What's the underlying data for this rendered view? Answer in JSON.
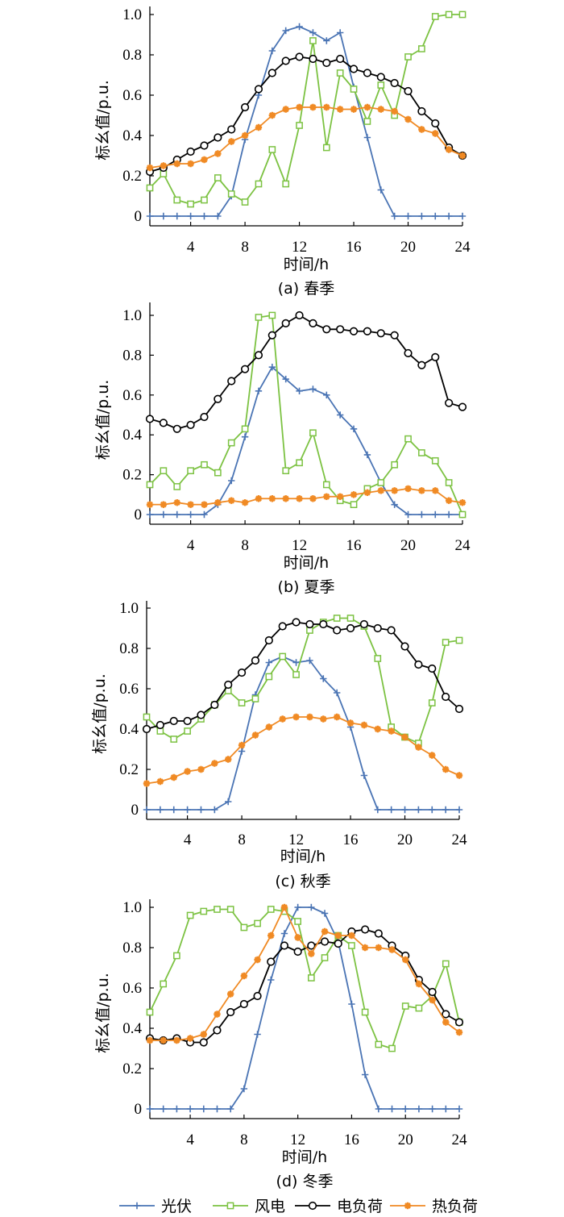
{
  "chart_data": [
    {
      "type": "line",
      "caption": "(a)  春季",
      "xlabel": "时间/h",
      "ylabel": "标幺值/p.u.",
      "xlim": [
        1,
        24
      ],
      "ylim": [
        0,
        1.0
      ],
      "xticks": [
        4,
        8,
        12,
        16,
        20,
        24
      ],
      "yticks": [
        0,
        0.2,
        0.4,
        0.6,
        0.8,
        1.0
      ],
      "ytick_labels": [
        "0",
        "0.2",
        "0.4",
        "0.6",
        "0.8",
        "1.0"
      ],
      "x": [
        1,
        2,
        3,
        4,
        5,
        6,
        7,
        8,
        9,
        10,
        11,
        12,
        13,
        14,
        15,
        16,
        17,
        18,
        19,
        20,
        21,
        22,
        23,
        24
      ],
      "series": [
        {
          "name": "光伏",
          "values": [
            0,
            0,
            0,
            0,
            0,
            0,
            0.1,
            0.38,
            0.6,
            0.82,
            0.92,
            0.94,
            0.91,
            0.87,
            0.91,
            0.64,
            0.39,
            0.13,
            0,
            0,
            0,
            0,
            0,
            0
          ]
        },
        {
          "name": "风电",
          "values": [
            0.14,
            0.21,
            0.08,
            0.06,
            0.08,
            0.19,
            0.11,
            0.07,
            0.16,
            0.33,
            0.16,
            0.45,
            0.87,
            0.34,
            0.71,
            0.63,
            0.47,
            0.65,
            0.5,
            0.79,
            0.83,
            0.99,
            1.0,
            1.0
          ]
        },
        {
          "name": "电负荷",
          "values": [
            0.22,
            0.24,
            0.28,
            0.32,
            0.35,
            0.39,
            0.43,
            0.54,
            0.63,
            0.71,
            0.77,
            0.79,
            0.78,
            0.76,
            0.78,
            0.73,
            0.71,
            0.69,
            0.66,
            0.62,
            0.52,
            0.46,
            0.34,
            0.3
          ]
        },
        {
          "name": "热负荷",
          "values": [
            0.24,
            0.25,
            0.26,
            0.26,
            0.28,
            0.31,
            0.37,
            0.4,
            0.44,
            0.5,
            0.53,
            0.54,
            0.54,
            0.54,
            0.53,
            0.53,
            0.54,
            0.53,
            0.52,
            0.48,
            0.43,
            0.41,
            0.33,
            0.3
          ]
        }
      ]
    },
    {
      "type": "line",
      "caption": "(b)  夏季",
      "xlabel": "时间/h",
      "ylabel": "标幺值/p.u.",
      "xlim": [
        1,
        24
      ],
      "ylim": [
        0,
        1.05
      ],
      "xticks": [
        4,
        8,
        12,
        16,
        20,
        24
      ],
      "yticks": [
        0,
        0.2,
        0.4,
        0.6,
        0.8,
        1.0
      ],
      "ytick_labels": [
        "0",
        "0.2",
        "0.4",
        "0.6",
        "0.8",
        "1.0"
      ],
      "x": [
        1,
        2,
        3,
        4,
        5,
        6,
        7,
        8,
        9,
        10,
        11,
        12,
        13,
        14,
        15,
        16,
        17,
        18,
        19,
        20,
        21,
        22,
        23,
        24
      ],
      "series": [
        {
          "name": "光伏",
          "values": [
            0,
            0,
            0,
            0,
            0,
            0.05,
            0.17,
            0.39,
            0.62,
            0.74,
            0.68,
            0.62,
            0.63,
            0.6,
            0.5,
            0.43,
            0.3,
            0.16,
            0.05,
            0,
            0,
            0,
            0,
            0
          ]
        },
        {
          "name": "风电",
          "values": [
            0.15,
            0.22,
            0.14,
            0.22,
            0.25,
            0.21,
            0.36,
            0.43,
            0.99,
            1.0,
            0.22,
            0.26,
            0.41,
            0.15,
            0.07,
            0.05,
            0.13,
            0.16,
            0.25,
            0.38,
            0.31,
            0.27,
            0.16,
            0.0
          ]
        },
        {
          "name": "电负荷",
          "values": [
            0.48,
            0.46,
            0.43,
            0.45,
            0.49,
            0.58,
            0.67,
            0.73,
            0.8,
            0.9,
            0.96,
            1.0,
            0.96,
            0.93,
            0.93,
            0.92,
            0.92,
            0.91,
            0.9,
            0.81,
            0.75,
            0.79,
            0.56,
            0.54
          ]
        },
        {
          "name": "热负荷",
          "values": [
            0.05,
            0.05,
            0.06,
            0.05,
            0.05,
            0.06,
            0.07,
            0.06,
            0.08,
            0.08,
            0.08,
            0.08,
            0.08,
            0.09,
            0.09,
            0.1,
            0.11,
            0.12,
            0.12,
            0.13,
            0.12,
            0.12,
            0.07,
            0.06
          ]
        }
      ]
    },
    {
      "type": "line",
      "caption": "(c)  秋季",
      "xlabel": "时间/h",
      "ylabel": "标幺值/p.u.",
      "xlim": [
        1,
        24
      ],
      "ylim": [
        0,
        1.0
      ],
      "xticks": [
        4,
        8,
        12,
        16,
        20,
        24
      ],
      "yticks": [
        0,
        0.2,
        0.4,
        0.6,
        0.8,
        1.0
      ],
      "ytick_labels": [
        "0",
        "0.2",
        "0.4",
        "0.6",
        "0.8",
        "1.0"
      ],
      "x": [
        1,
        2,
        3,
        4,
        5,
        6,
        7,
        8,
        9,
        10,
        11,
        12,
        13,
        14,
        15,
        16,
        17,
        18,
        19,
        20,
        21,
        22,
        23,
        24
      ],
      "series": [
        {
          "name": "光伏",
          "values": [
            0,
            0,
            0,
            0,
            0,
            0,
            0.04,
            0.29,
            0.57,
            0.73,
            0.76,
            0.73,
            0.74,
            0.65,
            0.58,
            0.41,
            0.17,
            0,
            0,
            0,
            0,
            0,
            0,
            0
          ]
        },
        {
          "name": "风电",
          "values": [
            0.46,
            0.39,
            0.35,
            0.39,
            0.45,
            0.52,
            0.59,
            0.53,
            0.55,
            0.66,
            0.76,
            0.67,
            0.89,
            0.93,
            0.95,
            0.95,
            0.91,
            0.75,
            0.41,
            0.36,
            0.33,
            0.53,
            0.83,
            0.84
          ]
        },
        {
          "name": "电负荷",
          "values": [
            0.4,
            0.42,
            0.44,
            0.44,
            0.47,
            0.52,
            0.62,
            0.68,
            0.74,
            0.84,
            0.91,
            0.93,
            0.92,
            0.92,
            0.89,
            0.9,
            0.92,
            0.9,
            0.89,
            0.81,
            0.72,
            0.7,
            0.56,
            0.5
          ]
        },
        {
          "name": "热负荷",
          "values": [
            0.13,
            0.14,
            0.16,
            0.19,
            0.2,
            0.23,
            0.25,
            0.32,
            0.37,
            0.41,
            0.45,
            0.46,
            0.46,
            0.45,
            0.46,
            0.43,
            0.42,
            0.4,
            0.39,
            0.36,
            0.31,
            0.27,
            0.2,
            0.17
          ]
        }
      ]
    },
    {
      "type": "line",
      "caption": "(d)  冬季",
      "xlabel": "时间/h",
      "ylabel": "标幺值/p.u.",
      "xlim": [
        1,
        24
      ],
      "ylim": [
        0,
        1.0
      ],
      "xticks": [
        4,
        8,
        12,
        16,
        20,
        24
      ],
      "yticks": [
        0,
        0.2,
        0.4,
        0.6,
        0.8,
        1.0
      ],
      "ytick_labels": [
        "0",
        "0.2",
        "0.4",
        "0.6",
        "0.8",
        "1.0"
      ],
      "x": [
        1,
        2,
        3,
        4,
        5,
        6,
        7,
        8,
        9,
        10,
        11,
        12,
        13,
        14,
        15,
        16,
        17,
        18,
        19,
        20,
        21,
        22,
        23,
        24
      ],
      "series": [
        {
          "name": "光伏",
          "values": [
            0,
            0,
            0,
            0,
            0,
            0,
            0,
            0.1,
            0.37,
            0.64,
            0.87,
            1.0,
            1.0,
            0.97,
            0.83,
            0.52,
            0.17,
            0,
            0,
            0,
            0,
            0,
            0,
            0
          ]
        },
        {
          "name": "风电",
          "values": [
            0.48,
            0.62,
            0.76,
            0.96,
            0.98,
            0.99,
            0.99,
            0.9,
            0.92,
            0.99,
            0.98,
            0.93,
            0.65,
            0.75,
            0.86,
            0.81,
            0.48,
            0.32,
            0.3,
            0.51,
            0.5,
            0.56,
            0.72,
            0.43
          ]
        },
        {
          "name": "电负荷",
          "values": [
            0.35,
            0.34,
            0.35,
            0.33,
            0.33,
            0.39,
            0.48,
            0.52,
            0.56,
            0.73,
            0.81,
            0.78,
            0.81,
            0.83,
            0.82,
            0.88,
            0.89,
            0.87,
            0.81,
            0.76,
            0.64,
            0.58,
            0.47,
            0.43
          ]
        },
        {
          "name": "热负荷",
          "values": [
            0.34,
            0.34,
            0.34,
            0.35,
            0.37,
            0.47,
            0.57,
            0.66,
            0.74,
            0.86,
            1.0,
            0.85,
            0.77,
            0.88,
            0.86,
            0.86,
            0.8,
            0.8,
            0.79,
            0.74,
            0.62,
            0.54,
            0.43,
            0.38
          ]
        }
      ]
    }
  ],
  "legend": [
    {
      "name": "光伏",
      "color": "#4a74b4",
      "marker": "plus"
    },
    {
      "name": "风电",
      "color": "#7cc242",
      "marker": "square"
    },
    {
      "name": "电负荷",
      "color": "#000000",
      "marker": "circle"
    },
    {
      "name": "热负荷",
      "color": "#f08a24",
      "marker": "star"
    }
  ]
}
